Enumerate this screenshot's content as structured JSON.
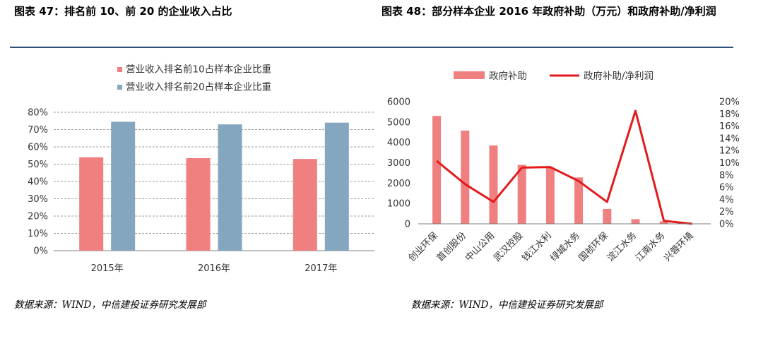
{
  "left_title": "图表 47：排名前 10、前 20 的企业收入占比",
  "right_title": "图表 48：部分样本企业 2016 年政府补助（万元）和政府补助/净利润",
  "left_source": "数据来源：WIND，中信建投证券研究发展部",
  "right_source": "数据来源：WIND，中信建投证券研究发展部",
  "chart_data": [
    {
      "type": "bar",
      "categories": [
        "2015年",
        "2016年",
        "2017年"
      ],
      "series": [
        {
          "name": "营业收入排名前10占样本企业比重",
          "values": [
            0.54,
            0.535,
            0.53
          ],
          "color": "#F08080"
        },
        {
          "name": "营业收入排名前20占样本企业比重",
          "values": [
            0.745,
            0.73,
            0.74
          ],
          "color": "#85A6BF"
        }
      ],
      "ylim": [
        0,
        0.8
      ],
      "yticks": [
        "0%",
        "10%",
        "20%",
        "30%",
        "40%",
        "50%",
        "60%",
        "70%",
        "80%"
      ],
      "grid": true,
      "legend": "top"
    },
    {
      "type": "bar+line",
      "categories": [
        "创业环保",
        "首创股份",
        "中山公用",
        "武汉控股",
        "钱江水利",
        "绿城水务",
        "国祯环保",
        "淀江水务",
        "江南水务",
        "兴蓉环境"
      ],
      "series": [
        {
          "name": "政府补助",
          "type": "bar",
          "axis": "left",
          "values": [
            5300,
            4580,
            3850,
            2900,
            2750,
            2280,
            730,
            230,
            120,
            0
          ],
          "color": "#F08080"
        },
        {
          "name": "政府补助/净利润",
          "type": "line",
          "axis": "right",
          "values": [
            0.103,
            0.065,
            0.036,
            0.092,
            0.093,
            0.07,
            0.036,
            0.185,
            0.005,
            0.0
          ],
          "color": "#E31A1C"
        }
      ],
      "ylim_left": [
        0,
        6000
      ],
      "ylim_right": [
        0,
        0.2
      ],
      "yticks_left": [
        "0",
        "1000",
        "2000",
        "3000",
        "4000",
        "5000",
        "6000"
      ],
      "yticks_right": [
        "0%",
        "2%",
        "4%",
        "6%",
        "8%",
        "10%",
        "12%",
        "14%",
        "16%",
        "18%",
        "20%"
      ],
      "legend": "top"
    }
  ]
}
